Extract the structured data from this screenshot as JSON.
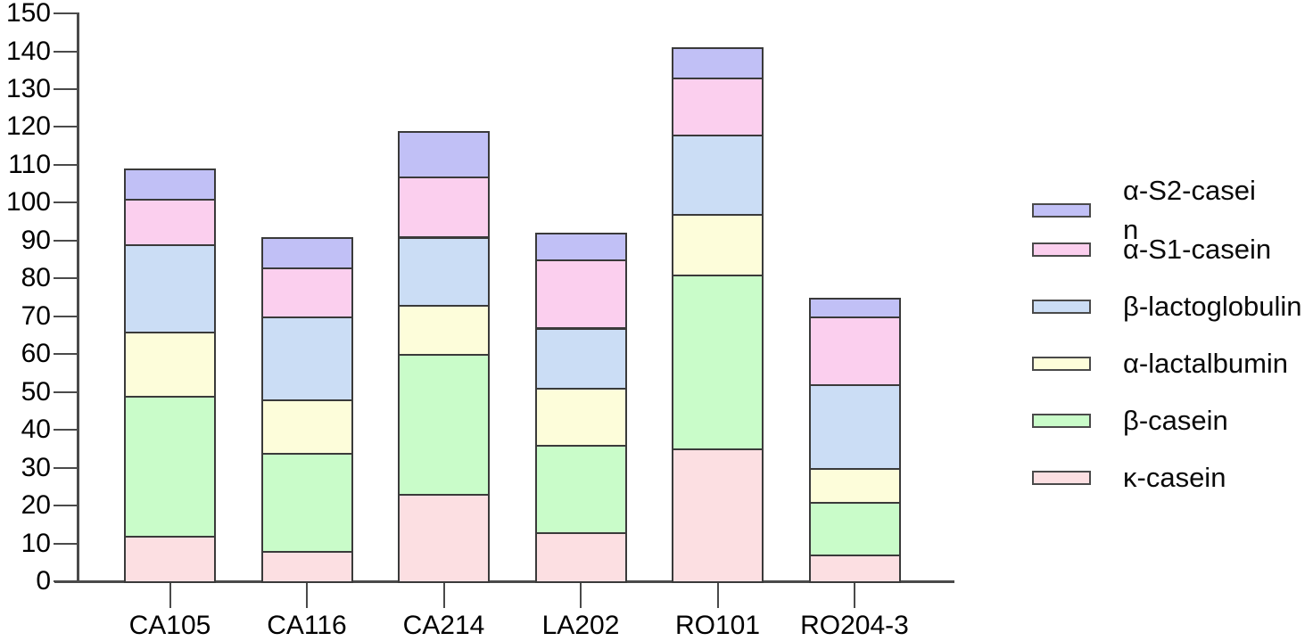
{
  "chart_data": {
    "type": "bar",
    "stacked": true,
    "title": "",
    "xlabel": "",
    "ylabel": "",
    "categories": [
      "CA105",
      "CA116",
      "CA214",
      "LA202",
      "RO101",
      "RO204-3"
    ],
    "series": [
      {
        "name": "κ-casein",
        "color": "#fcdfe2",
        "values": [
          12,
          8,
          23,
          13,
          35,
          7
        ]
      },
      {
        "name": "β-casein",
        "color": "#c9fcc9",
        "values": [
          37,
          26,
          37,
          23,
          46,
          14
        ]
      },
      {
        "name": "α-lactalbumin",
        "color": "#fdfdda",
        "values": [
          17,
          14,
          13,
          15,
          16,
          9
        ]
      },
      {
        "name": "β-lactoglobulin",
        "color": "#cbddf5",
        "values": [
          23,
          22,
          18,
          16,
          21,
          22
        ]
      },
      {
        "name": "α-S1-casein",
        "color": "#fbcfee",
        "values": [
          12,
          13,
          16,
          18,
          15,
          18
        ]
      },
      {
        "name": "α-S2-casein",
        "color": "#c1c0f6",
        "values": [
          8,
          8,
          12,
          7,
          8,
          5
        ]
      }
    ],
    "totals": [
      109,
      91,
      119,
      92,
      141,
      75
    ],
    "ylim": [
      0,
      150
    ],
    "ytick_interval": 10,
    "yticks": [
      0,
      10,
      20,
      30,
      40,
      50,
      60,
      70,
      80,
      90,
      100,
      110,
      120,
      130,
      140,
      150
    ],
    "grid": false,
    "legend_position": "right",
    "legend": {
      "items": [
        {
          "series": "α-S2-casein",
          "lines": [
            "α-S2-casei",
            "n"
          ],
          "color": "#c1c0f6"
        },
        {
          "series": "α-S1-casein",
          "lines": [
            "α-S1-casein"
          ],
          "color": "#fbcfee"
        },
        {
          "series": "β-lactoglobulin",
          "lines": [
            "β-lactoglobulin"
          ],
          "color": "#cbddf5"
        },
        {
          "series": "α-lactalbumin",
          "lines": [
            "α-lactalbumin"
          ],
          "color": "#fdfdda"
        },
        {
          "series": "β-casein",
          "lines": [
            "β-casein"
          ],
          "color": "#c9fcc9"
        },
        {
          "series": "κ-casein",
          "lines": [
            "κ-casein"
          ],
          "color": "#fcdfe2"
        }
      ]
    },
    "colors": {
      "axis": "#4a4a4a",
      "segment_border": "#3a3a3a",
      "text": "#000000",
      "background": "#ffffff"
    }
  }
}
